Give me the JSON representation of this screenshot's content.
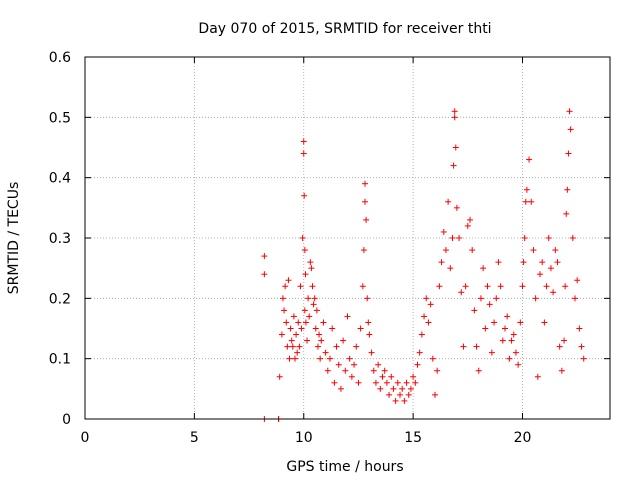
{
  "chart_data": {
    "type": "scatter",
    "title": "Day 070 of 2015, SRMTID for receiver thti",
    "xlabel": "GPS time / hours",
    "ylabel": "SRMTID / TECUs",
    "xlim": [
      0,
      24
    ],
    "ylim": [
      0,
      0.6
    ],
    "xticks": [
      0,
      5,
      10,
      15,
      20
    ],
    "yticks": [
      0,
      0.1,
      0.2,
      0.3,
      0.4,
      0.5,
      0.6
    ],
    "xtick_labels": [
      "0",
      "5",
      "10",
      "15",
      "20"
    ],
    "ytick_labels": [
      "0",
      "0.1",
      "0.2",
      "0.3",
      "0.4",
      "0.5",
      "0.6"
    ],
    "grid": true,
    "marker": "+",
    "series": [
      {
        "name": "SRMTID",
        "color": "#ff0000",
        "x": [
          8.2,
          8.2,
          8.2,
          8.85,
          8.85,
          8.9,
          9.0,
          9.05,
          9.1,
          9.15,
          9.2,
          9.25,
          9.3,
          9.35,
          9.4,
          9.45,
          9.5,
          9.55,
          9.6,
          9.65,
          9.7,
          9.75,
          9.8,
          9.85,
          9.9,
          9.95,
          10.0,
          10.0,
          10.02,
          10.05,
          10.05,
          10.08,
          10.1,
          10.15,
          10.2,
          10.25,
          10.3,
          10.35,
          10.4,
          10.45,
          10.5,
          10.55,
          10.6,
          10.65,
          10.7,
          10.75,
          10.8,
          10.9,
          11.0,
          11.1,
          11.2,
          11.3,
          11.4,
          11.5,
          11.6,
          11.7,
          11.8,
          11.9,
          12.0,
          12.1,
          12.2,
          12.3,
          12.4,
          12.5,
          12.6,
          12.7,
          12.75,
          12.8,
          12.8,
          12.85,
          12.9,
          12.95,
          13.0,
          13.1,
          13.2,
          13.3,
          13.4,
          13.5,
          13.6,
          13.7,
          13.8,
          13.9,
          14.0,
          14.1,
          14.2,
          14.3,
          14.4,
          14.5,
          14.6,
          14.7,
          14.8,
          14.9,
          15.0,
          15.1,
          15.2,
          15.3,
          15.4,
          15.5,
          15.6,
          15.7,
          15.8,
          15.9,
          16.0,
          16.1,
          16.2,
          16.3,
          16.4,
          16.5,
          16.6,
          16.7,
          16.8,
          16.85,
          16.9,
          16.9,
          16.95,
          17.0,
          17.1,
          17.2,
          17.3,
          17.4,
          17.5,
          17.6,
          17.7,
          17.8,
          17.9,
          18.0,
          18.1,
          18.2,
          18.3,
          18.4,
          18.5,
          18.6,
          18.7,
          18.8,
          18.9,
          19.0,
          19.1,
          19.2,
          19.3,
          19.4,
          19.5,
          19.6,
          19.7,
          19.8,
          19.9,
          20.0,
          20.05,
          20.1,
          20.15,
          20.2,
          20.3,
          20.4,
          20.5,
          20.6,
          20.7,
          20.8,
          20.9,
          21.0,
          21.1,
          21.2,
          21.3,
          21.4,
          21.5,
          21.6,
          21.7,
          21.8,
          21.9,
          21.95,
          22.0,
          22.05,
          22.1,
          22.15,
          22.2,
          22.3,
          22.4,
          22.5,
          22.6,
          22.7,
          22.8
        ],
        "y": [
          0.27,
          0.24,
          0.0,
          0.0,
          0.0,
          0.07,
          0.14,
          0.2,
          0.18,
          0.22,
          0.16,
          0.12,
          0.23,
          0.1,
          0.15,
          0.13,
          0.12,
          0.17,
          0.1,
          0.14,
          0.11,
          0.16,
          0.12,
          0.22,
          0.15,
          0.3,
          0.44,
          0.46,
          0.37,
          0.28,
          0.18,
          0.24,
          0.16,
          0.13,
          0.2,
          0.17,
          0.26,
          0.25,
          0.22,
          0.19,
          0.2,
          0.15,
          0.18,
          0.12,
          0.14,
          0.1,
          0.13,
          0.16,
          0.11,
          0.08,
          0.1,
          0.15,
          0.06,
          0.12,
          0.09,
          0.05,
          0.13,
          0.08,
          0.17,
          0.1,
          0.07,
          0.09,
          0.12,
          0.06,
          0.15,
          0.22,
          0.28,
          0.36,
          0.39,
          0.33,
          0.2,
          0.16,
          0.14,
          0.11,
          0.08,
          0.06,
          0.09,
          0.05,
          0.07,
          0.08,
          0.06,
          0.04,
          0.07,
          0.05,
          0.03,
          0.06,
          0.04,
          0.05,
          0.03,
          0.06,
          0.04,
          0.05,
          0.07,
          0.06,
          0.09,
          0.11,
          0.14,
          0.17,
          0.2,
          0.16,
          0.19,
          0.1,
          0.04,
          0.08,
          0.22,
          0.26,
          0.31,
          0.28,
          0.36,
          0.25,
          0.3,
          0.42,
          0.5,
          0.51,
          0.45,
          0.35,
          0.3,
          0.21,
          0.12,
          0.22,
          0.32,
          0.33,
          0.28,
          0.18,
          0.12,
          0.08,
          0.2,
          0.25,
          0.15,
          0.22,
          0.19,
          0.11,
          0.16,
          0.2,
          0.26,
          0.22,
          0.13,
          0.15,
          0.17,
          0.1,
          0.13,
          0.14,
          0.11,
          0.09,
          0.16,
          0.22,
          0.26,
          0.3,
          0.36,
          0.38,
          0.43,
          0.36,
          0.28,
          0.2,
          0.07,
          0.24,
          0.26,
          0.16,
          0.22,
          0.3,
          0.25,
          0.21,
          0.28,
          0.26,
          0.12,
          0.08,
          0.13,
          0.22,
          0.34,
          0.38,
          0.44,
          0.51,
          0.48,
          0.3,
          0.2,
          0.23,
          0.15,
          0.12,
          0.1
        ]
      }
    ]
  }
}
